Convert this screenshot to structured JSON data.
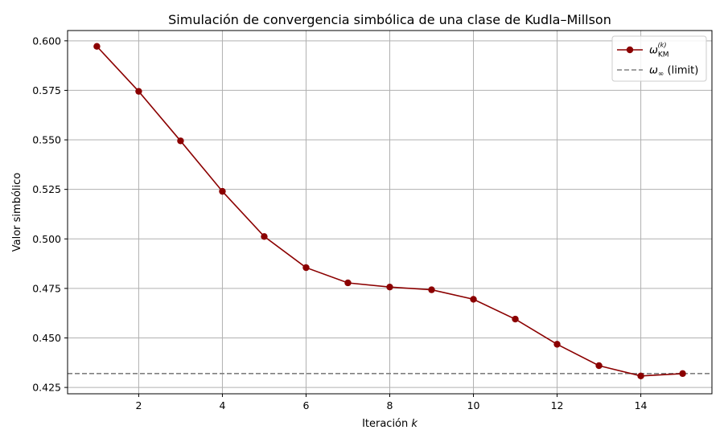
{
  "chart_data": {
    "type": "line",
    "title": "Simulación de convergencia simbólica de una clase de Kudla–Millson",
    "xlabel": "Iteración",
    "xlabel_var": "k",
    "ylabel": "Valor simbólico",
    "xlim": [
      0.3,
      15.7
    ],
    "ylim": [
      0.4218,
      0.6052
    ],
    "x_ticks": [
      2,
      4,
      6,
      8,
      10,
      12,
      14
    ],
    "y_ticks": [
      0.425,
      0.45,
      0.475,
      0.5,
      0.525,
      0.55,
      0.575,
      0.6
    ],
    "y_tick_labels": [
      "0.425",
      "0.450",
      "0.475",
      "0.500",
      "0.525",
      "0.550",
      "0.575",
      "0.600"
    ],
    "grid": true,
    "legend_position": "top-right",
    "series": [
      {
        "name": "ω_KM^(k)",
        "legend_main": "ω",
        "legend_sub": "KM",
        "legend_sup": "(k)",
        "color": "#8b0000",
        "style": "solid-marker",
        "x": [
          1,
          2,
          3,
          4,
          5,
          6,
          7,
          8,
          9,
          10,
          11,
          12,
          13,
          14,
          15
        ],
        "y": [
          0.5972,
          0.5745,
          0.5495,
          0.524,
          0.5012,
          0.4855,
          0.4778,
          0.4757,
          0.4743,
          0.4695,
          0.4595,
          0.4468,
          0.436,
          0.4308,
          0.432
        ]
      }
    ],
    "reference_lines": [
      {
        "name": "ω∞ (limit)",
        "legend_main": "ω",
        "legend_sub": "∞",
        "legend_rest": " (limit)",
        "y": 0.432,
        "color": "#808080",
        "style": "dashed"
      }
    ]
  }
}
